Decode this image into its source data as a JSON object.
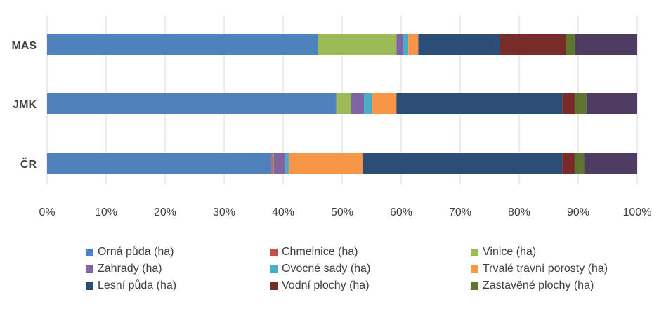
{
  "chart_data": {
    "type": "bar",
    "orientation": "horizontal",
    "stacked": "percent",
    "categories": [
      "MAS",
      "JMK",
      "ČR"
    ],
    "xlim": [
      0,
      100
    ],
    "x_ticks": [
      "0%",
      "10%",
      "20%",
      "30%",
      "40%",
      "50%",
      "60%",
      "70%",
      "80%",
      "90%",
      "100%"
    ],
    "grid": "vertical",
    "legend_position": "bottom",
    "series": [
      {
        "name": "Orná půda (ha)",
        "color": "#4F81BD",
        "values": [
          45.9,
          49.0,
          38.0
        ]
      },
      {
        "name": "Chmelnice (ha)",
        "color": "#C0504D",
        "values": [
          0.0,
          0.0,
          0.2
        ]
      },
      {
        "name": "Vinice (ha)",
        "color": "#9BBB59",
        "values": [
          13.3,
          2.5,
          0.2
        ]
      },
      {
        "name": "Zahrady (ha)",
        "color": "#8064A2",
        "values": [
          1.1,
          2.2,
          2.0
        ]
      },
      {
        "name": "Ovocné sady (ha)",
        "color": "#4BACC6",
        "values": [
          0.9,
          1.3,
          0.6
        ]
      },
      {
        "name": "Trvalé travní porosty (ha)",
        "color": "#F79646",
        "values": [
          1.7,
          4.2,
          12.5
        ]
      },
      {
        "name": "Lesní půda (ha)",
        "color": "#2C4D75",
        "values": [
          13.8,
          28.1,
          33.8
        ]
      },
      {
        "name": "Vodní plochy (ha)",
        "color": "#772C2A",
        "values": [
          11.2,
          2.1,
          2.1
        ]
      },
      {
        "name": "Zastavěné plochy (ha)",
        "color": "#5F7530",
        "values": [
          1.5,
          2.0,
          1.6
        ]
      },
      {
        "name": "",
        "color": "#4D3B62",
        "values": [
          10.6,
          8.6,
          9.0
        ]
      }
    ]
  }
}
